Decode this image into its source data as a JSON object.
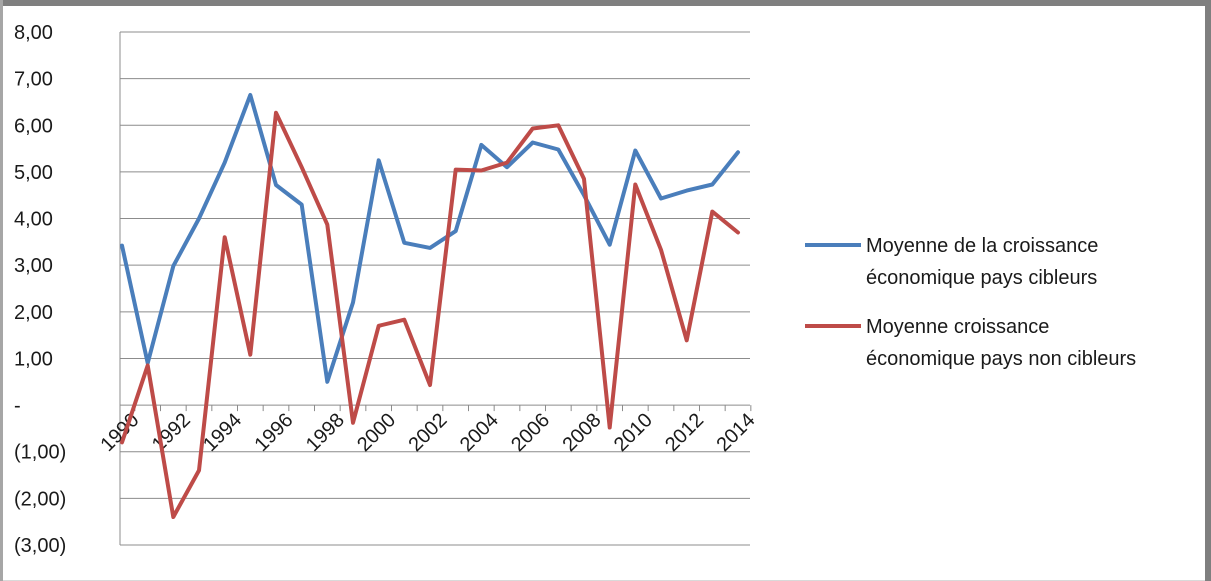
{
  "chart_data": {
    "type": "line",
    "title": "",
    "xlabel": "",
    "ylabel": "",
    "ylim": [
      -3,
      8
    ],
    "y_ticks": [
      -3,
      -2,
      -1,
      0,
      1,
      2,
      3,
      4,
      5,
      6,
      7,
      8
    ],
    "y_tick_labels": [
      "(3,00)",
      "(2,00)",
      "(1,00)",
      "-",
      "1,00",
      "2,00",
      "3,00",
      "4,00",
      "5,00",
      "6,00",
      "7,00",
      "8,00"
    ],
    "x": [
      1990,
      1991,
      1992,
      1993,
      1994,
      1995,
      1996,
      1997,
      1998,
      1999,
      2000,
      2001,
      2002,
      2003,
      2004,
      2005,
      2006,
      2007,
      2008,
      2009,
      2010,
      2011,
      2012,
      2013,
      2014
    ],
    "x_tick_labels": [
      "1990",
      "1992",
      "1994",
      "1996",
      "1998",
      "2000",
      "2002",
      "2004",
      "2006",
      "2008",
      "2010",
      "2012",
      "2014"
    ],
    "grid": "horizontal",
    "legend_position": "right",
    "series": [
      {
        "name": "Moyenne de la croissance économique pays cibleurs",
        "name_lines": [
          "Moyenne de la croissance",
          "économique pays cibleurs"
        ],
        "color": "#4a7ebb",
        "values": [
          3.42,
          0.9,
          2.98,
          4.0,
          5.2,
          6.65,
          4.72,
          4.3,
          0.5,
          2.2,
          5.25,
          3.48,
          3.37,
          3.73,
          5.58,
          5.1,
          5.63,
          5.48,
          4.5,
          3.44,
          5.46,
          4.43,
          4.6,
          4.73,
          5.42
        ]
      },
      {
        "name": "Moyenne croissance économique pays non cibleurs",
        "name_lines": [
          "Moyenne croissance",
          "économique pays non cibleurs"
        ],
        "color": "#be4b48",
        "values": [
          -0.8,
          0.85,
          -2.4,
          -1.4,
          3.6,
          1.08,
          6.27,
          5.1,
          3.87,
          -0.38,
          1.7,
          1.83,
          0.43,
          5.05,
          5.03,
          5.2,
          5.93,
          6.0,
          4.85,
          -0.48,
          4.73,
          3.33,
          1.39,
          4.15,
          3.7
        ]
      }
    ]
  }
}
